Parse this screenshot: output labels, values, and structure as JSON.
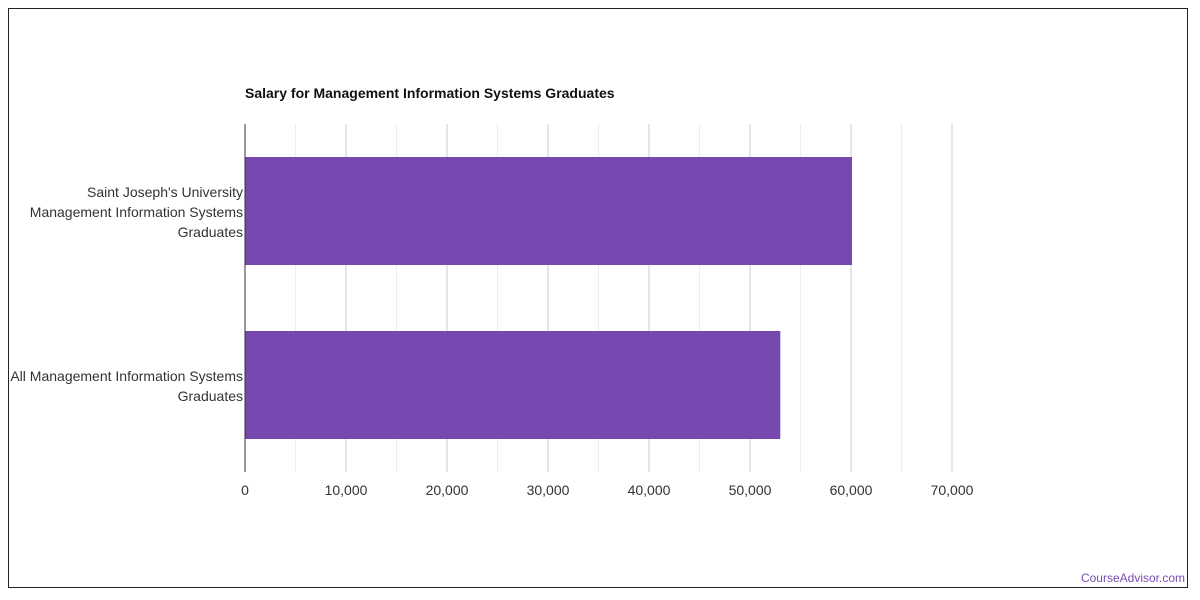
{
  "chart_data": {
    "type": "bar",
    "orientation": "horizontal",
    "title": "Salary for Management Information Systems Graduates",
    "categories": [
      "Saint Joseph's University Management Information Systems Graduates",
      "All Management Information Systems Graduates"
    ],
    "values": [
      60100,
      53000
    ],
    "xlim": [
      0,
      70000
    ],
    "x_ticks": [
      0,
      10000,
      20000,
      30000,
      40000,
      50000,
      60000,
      70000
    ],
    "x_tick_labels": [
      "0",
      "10,000",
      "20,000",
      "30,000",
      "40,000",
      "50,000",
      "60,000",
      "70,000"
    ],
    "bar_color": "#7549b0",
    "grid": true,
    "legend": "none"
  },
  "branding": {
    "text": "CourseAdvisor.com",
    "color": "#7a4db0"
  }
}
